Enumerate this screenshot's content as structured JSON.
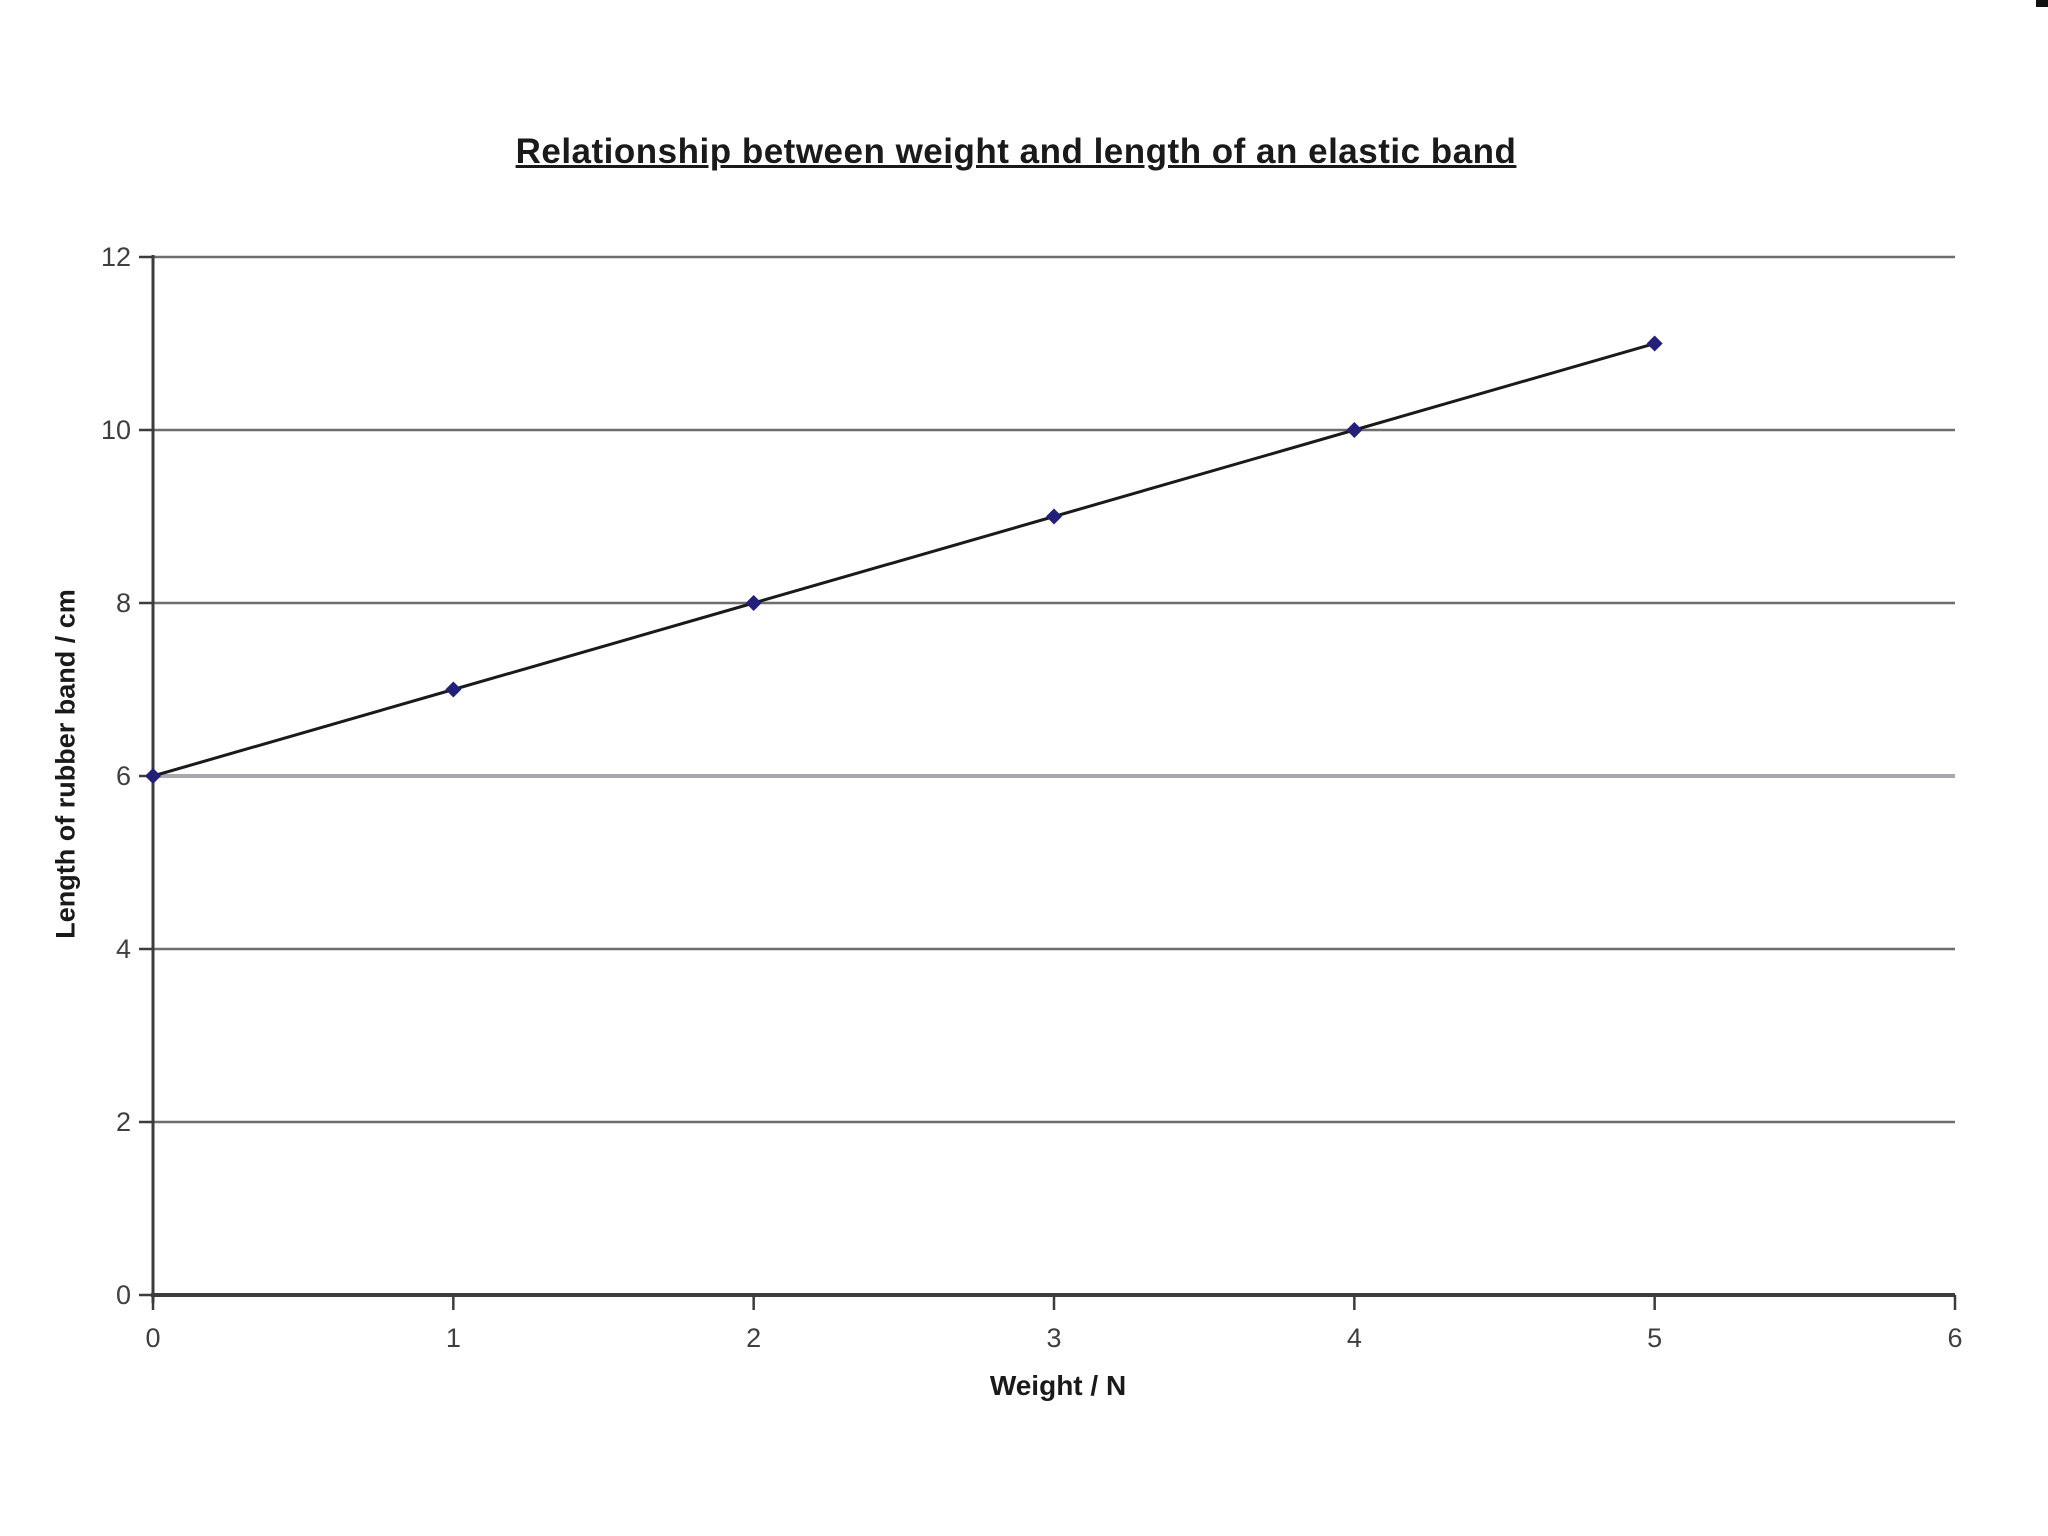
{
  "page": {
    "background_color": "#ffffff",
    "corner_artifact_color": "#111111"
  },
  "chart_data": {
    "type": "line",
    "title": "Relationship between weight and length of an elastic band",
    "xlabel": "Weight / N",
    "ylabel": "Length of rubber band / cm",
    "x": [
      0,
      1,
      2,
      3,
      4,
      5
    ],
    "y": [
      6,
      7,
      8,
      9,
      10,
      11
    ],
    "xlim": [
      0,
      6
    ],
    "ylim": [
      0,
      12
    ],
    "x_ticks": [
      0,
      1,
      2,
      3,
      4,
      5,
      6
    ],
    "x_tick_labels": [
      "0",
      "1",
      "2",
      "3",
      "4",
      "5",
      "6"
    ],
    "y_ticks": [
      0,
      2,
      4,
      6,
      8,
      10,
      12
    ],
    "y_tick_labels": [
      "0",
      "2",
      "4",
      "6",
      "8",
      "10",
      "12"
    ],
    "grid": "horizontal-only",
    "legend": "none",
    "line_color": "#1a1a1a",
    "marker_shape": "diamond",
    "marker_color": "#23207a",
    "gridline_color": "#6e6e6e",
    "gridline_light_color": "#a9a9ad",
    "gridline_light_at": 6,
    "axis_color": "#3c3c3c",
    "tick_label_color": "#3f3f3f"
  }
}
